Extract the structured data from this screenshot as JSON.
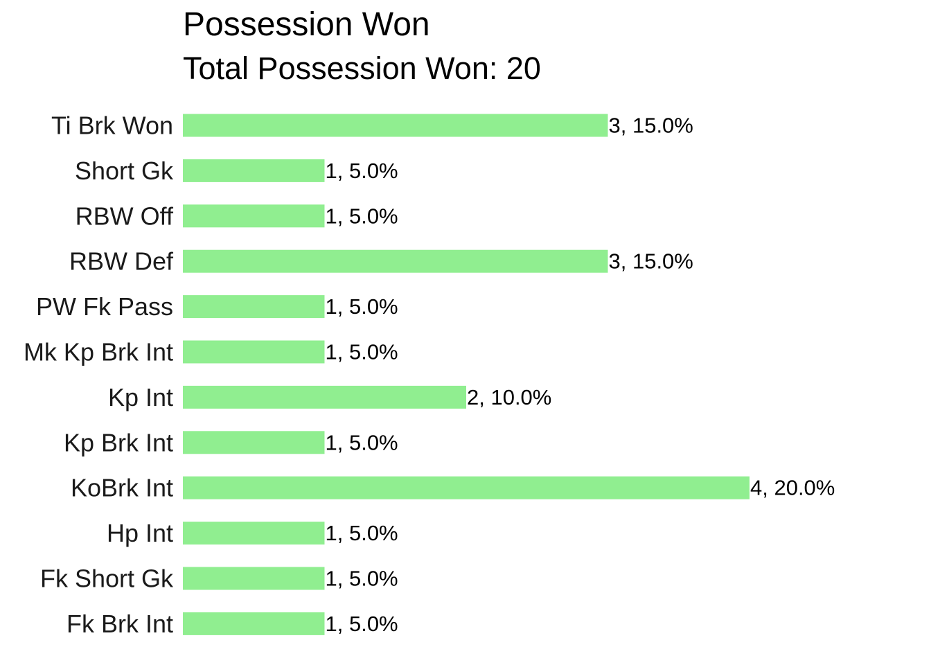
{
  "chart_data": {
    "type": "bar",
    "orientation": "horizontal",
    "title": "Possession Won",
    "subtitle": "Total Possession Won: 20",
    "xlabel": "",
    "ylabel": "",
    "grid": false,
    "bar_color": "#90ee90",
    "xlim": [
      0,
      4.2
    ],
    "categories": [
      "Ti Brk Won",
      "Short Gk",
      "RBW Off",
      "RBW Def",
      "PW Fk Pass",
      "Mk Kp Brk Int",
      "Kp Int",
      "Kp Brk Int",
      "KoBrk Int",
      "Hp Int",
      "Fk Short Gk",
      "Fk Brk Int"
    ],
    "values": [
      3,
      1,
      1,
      3,
      1,
      1,
      2,
      1,
      4,
      1,
      1,
      1
    ],
    "data_labels": [
      "3, 15.0%",
      "1, 5.0%",
      "1, 5.0%",
      "3, 15.0%",
      "1, 5.0%",
      "1, 5.0%",
      "2, 10.0%",
      "1, 5.0%",
      "4, 20.0%",
      "1, 5.0%",
      "1, 5.0%",
      "1, 5.0%"
    ]
  }
}
